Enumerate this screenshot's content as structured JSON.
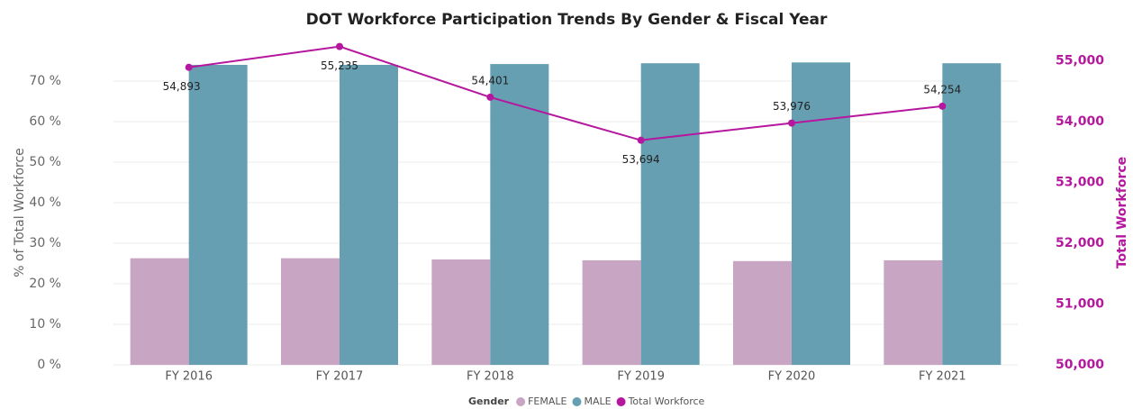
{
  "chart_data": {
    "type": "bar",
    "title": "DOT Workforce Participation Trends By Gender & Fiscal Year",
    "categories": [
      "FY 2016",
      "FY 2017",
      "FY 2018",
      "FY 2019",
      "FY 2020",
      "FY 2021"
    ],
    "series": [
      {
        "name": "FEMALE",
        "color": "#c9a5c4",
        "values": [
          26.3,
          26.3,
          26.0,
          25.8,
          25.6,
          25.8
        ]
      },
      {
        "name": "MALE",
        "color": "#669fb2",
        "values": [
          74.0,
          74.0,
          74.2,
          74.4,
          74.6,
          74.4
        ]
      },
      {
        "name": "Total Workforce",
        "color": "#b5179e",
        "type": "line",
        "axis": "y2",
        "values": [
          54893,
          55235,
          54401,
          53694,
          53976,
          54254
        ],
        "value_labels": [
          "54,893",
          "55,235",
          "54,401",
          "53,694",
          "53,976",
          "54,254"
        ]
      }
    ],
    "y_label": "% of Total Workforce",
    "y2_label": "Total Workforce",
    "legend_title": "Gender",
    "ylim": [
      0,
      75
    ],
    "yticks": [
      {
        "value": 0,
        "label": "0 %"
      },
      {
        "value": 10,
        "label": "10 %"
      },
      {
        "value": 20,
        "label": "20 %"
      },
      {
        "value": 30,
        "label": "30 %"
      },
      {
        "value": 40,
        "label": "40 %"
      },
      {
        "value": 50,
        "label": "50 %"
      },
      {
        "value": 60,
        "label": "60 %"
      },
      {
        "value": 70,
        "label": "70 %"
      }
    ],
    "y2lim": [
      50000,
      55000
    ],
    "y2ticks": [
      {
        "value": 50000,
        "label": "50,000"
      },
      {
        "value": 51000,
        "label": "51,000"
      },
      {
        "value": 52000,
        "label": "52,000"
      },
      {
        "value": 53000,
        "label": "53,000"
      },
      {
        "value": 54000,
        "label": "54,000"
      },
      {
        "value": 55000,
        "label": "55,000"
      }
    ],
    "grid": true,
    "legend": "bottom"
  }
}
